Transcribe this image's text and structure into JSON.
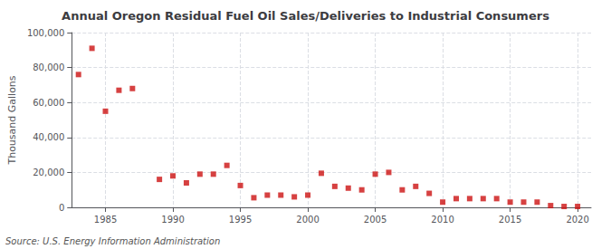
{
  "chart_data": {
    "type": "scatter",
    "title": "Annual Oregon Residual Fuel Oil Sales/Deliveries to Industrial Consumers",
    "ylabel": "Thousand Gallons",
    "annotation": "Source: U.S. Energy Information Administration",
    "x": [
      1983,
      1984,
      1985,
      1986,
      1987,
      1989,
      1990,
      1991,
      1992,
      1993,
      1994,
      1995,
      1996,
      1997,
      1998,
      1999,
      2000,
      2001,
      2002,
      2003,
      2004,
      2005,
      2006,
      2007,
      2008,
      2009,
      2010,
      2011,
      2012,
      2013,
      2014,
      2015,
      2016,
      2017,
      2018,
      2019,
      2020
    ],
    "values": [
      76000,
      91000,
      55000,
      67000,
      68000,
      16000,
      18000,
      14000,
      19000,
      19000,
      24000,
      12500,
      5500,
      7000,
      7000,
      6000,
      7000,
      19500,
      12000,
      11000,
      10000,
      19000,
      20000,
      10000,
      12000,
      8000,
      3000,
      5000,
      5000,
      5000,
      5000,
      3000,
      3000,
      3000,
      1000,
      500,
      500
    ],
    "color": "#cc1111",
    "marker": "square",
    "xlim": [
      1982.5,
      2021
    ],
    "xticks": [
      1985,
      1990,
      1995,
      2000,
      2005,
      2010,
      2015,
      2020
    ],
    "ylim": [
      0,
      100000
    ],
    "yticks": [
      0,
      {
        "value": 20000,
        "label": "20,000"
      },
      {
        "value": 40000,
        "label": "40,000"
      },
      {
        "value": 60000,
        "label": "60,000"
      },
      {
        "value": 80000,
        "label": "80,000"
      },
      {
        "value": 100000,
        "label": "100,000"
      }
    ],
    "grid": true
  }
}
